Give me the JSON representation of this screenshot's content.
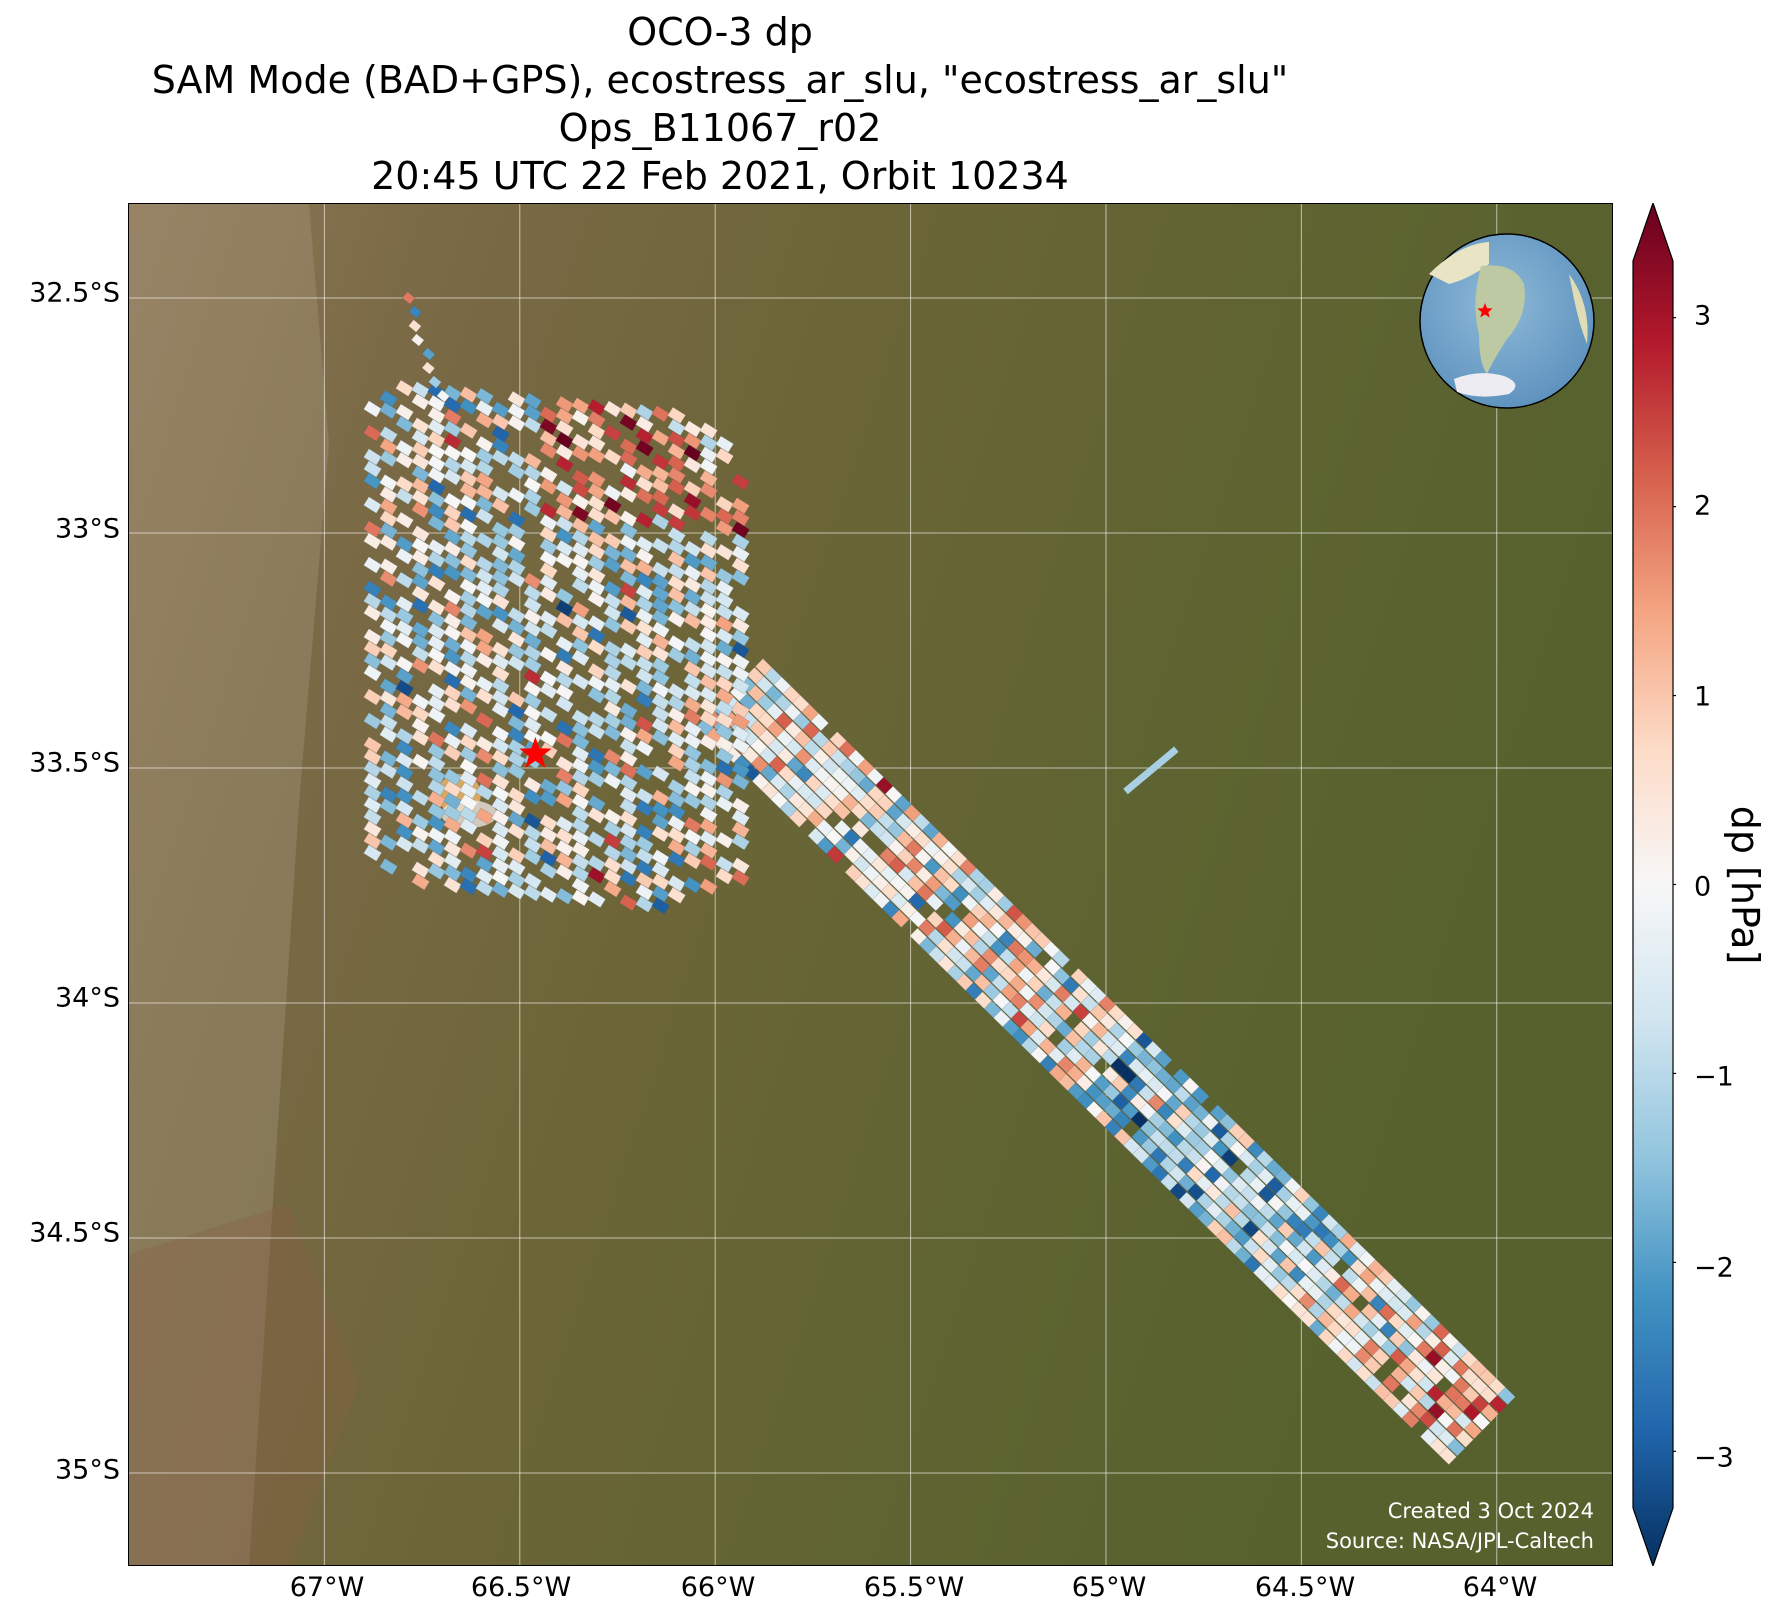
{
  "title": {
    "line1": "OCO-3 dp",
    "line2": "SAM Mode (BAD+GPS), ecostress_ar_slu, \"ecostress_ar_slu\"",
    "line3": "Ops_B11067_r02",
    "line4": "20:45 UTC 22 Feb 2021, Orbit 10234"
  },
  "map": {
    "latitude_labels": [
      "32.5°S",
      "33°S",
      "33.5°S",
      "34°S",
      "34.5°S",
      "35°S"
    ],
    "longitude_labels": [
      "67°W",
      "66.5°W",
      "66°W",
      "65.5°W",
      "65°W",
      "64.5°W",
      "64°W"
    ],
    "lat_ticks": [
      -32.5,
      -33.0,
      -33.5,
      -34.0,
      -34.5,
      -35.0
    ],
    "lon_ticks": [
      -67.0,
      -66.5,
      -66.0,
      -65.5,
      -65.0,
      -64.5,
      -64.0
    ],
    "extent": {
      "lon_min": -67.5,
      "lon_max": -63.7,
      "lat_max": -32.3,
      "lat_min": -35.2
    },
    "target_marker": {
      "lon": -66.46,
      "lat": -33.47,
      "color": "#ff0000"
    },
    "background": "satellite imagery",
    "credit_line1": "Created 3 Oct 2024",
    "credit_line2": "Source: NASA/JPL-Caltech"
  },
  "swaths": [
    {
      "name": "sam-west-cluster",
      "lon": [
        -66.8,
        -66.1
      ],
      "lat": [
        -32.5,
        -33.75
      ]
    },
    {
      "name": "sam-diagonal-swath",
      "lon": [
        -65.95,
        -64.05
      ],
      "lat": [
        -33.35,
        -34.9
      ]
    },
    {
      "name": "sam-small-segment",
      "lon": [
        -64.95,
        -64.8
      ],
      "lat": [
        -33.45,
        -33.55
      ]
    }
  ],
  "colorbar": {
    "label": "dp [hPa]",
    "min": -3.3,
    "max": 3.3,
    "extend": "both",
    "colormap": "RdBu_r",
    "ticks": [
      -3,
      -2,
      -1,
      0,
      1,
      2,
      3
    ],
    "tick_labels": [
      "−3",
      "−2",
      "−1",
      "0",
      "1",
      "2",
      "3"
    ],
    "colors": [
      "#053061",
      "#2166ac",
      "#4393c3",
      "#92c5de",
      "#d1e5f0",
      "#f7f7f7",
      "#fddbc7",
      "#f4a582",
      "#d6604d",
      "#b2182b",
      "#67001f"
    ]
  }
}
